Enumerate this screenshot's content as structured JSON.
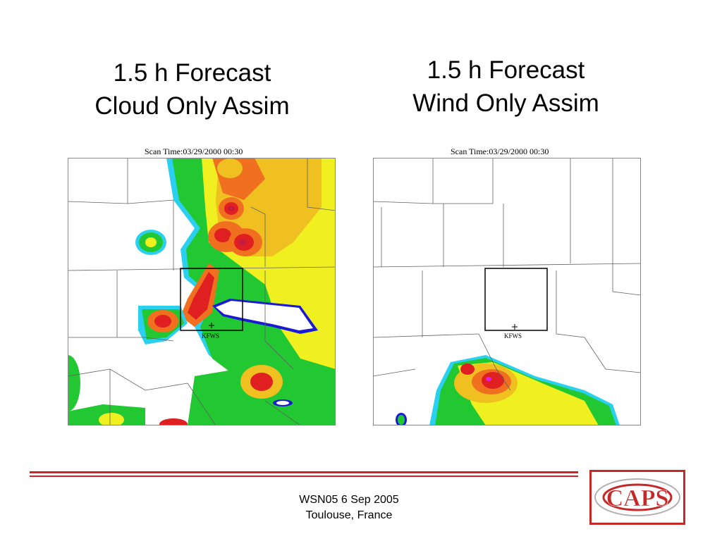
{
  "slide": {
    "left_title": {
      "line1": "1.5 h Forecast",
      "line2": "Cloud Only Assim"
    },
    "right_title": {
      "line1": "1.5 h Forecast",
      "line2": "Wind Only Assim"
    },
    "left_panel": {
      "scan_time": "Scan Time:03/29/2000 00:30",
      "station": "KFWS"
    },
    "right_panel": {
      "scan_time": "Scan Time:03/29/2000 00:30",
      "station": "KFWS"
    },
    "footer": {
      "line1": "WSN05 6 Sep 2005",
      "line2": "Toulouse, France"
    },
    "logo": {
      "text": "CAPS"
    },
    "colors": {
      "footer_rule": "#d32222",
      "reflectivity_scale": [
        "#1a1ad4",
        "#2ad0f0",
        "#22c832",
        "#f0f020",
        "#f0c020",
        "#f07020",
        "#e02020",
        "#c81a3a",
        "#e020e0"
      ]
    }
  }
}
